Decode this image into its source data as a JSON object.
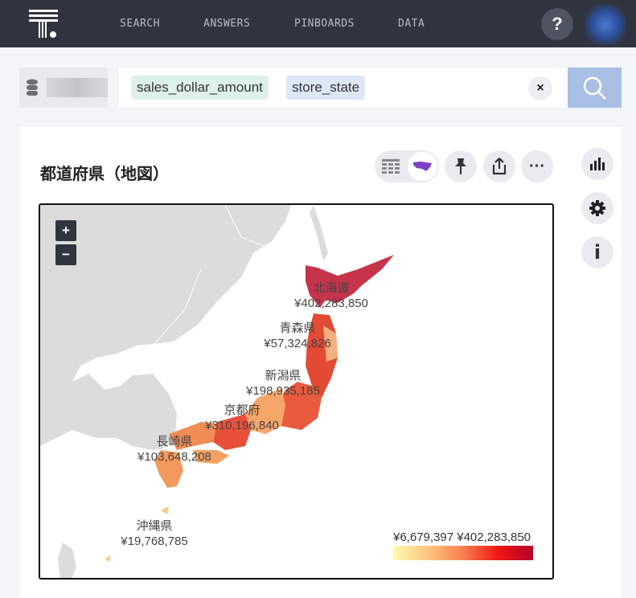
{
  "nav": {
    "items": [
      "SEARCH",
      "ANSWERS",
      "PINBOARDS",
      "DATA"
    ],
    "help": "?"
  },
  "search": {
    "tokens": [
      "sales_dollar_amount",
      "store_state"
    ],
    "clear": "×"
  },
  "chart": {
    "title": "都道府県（地図）",
    "map_labels": [
      {
        "name": "北海道",
        "value": "¥402,283,850"
      },
      {
        "name": "青森県",
        "value": "¥57,324,826"
      },
      {
        "name": "新潟県",
        "value": "¥198,935,185"
      },
      {
        "name": "京都府",
        "value": "¥310,196,840"
      },
      {
        "name": "長崎県",
        "value": "¥103,648,208"
      },
      {
        "name": "沖縄県",
        "value": "¥19,768,785"
      }
    ],
    "legend": {
      "min": "¥6,679,397",
      "max": "¥402,283,850",
      "colors": [
        "#fffbb0",
        "#fdc580",
        "#f6804f",
        "#f21712",
        "#b4002a"
      ]
    },
    "zoom_in": "+",
    "zoom_out": "−"
  },
  "side": {
    "info": "i"
  },
  "colors": {
    "topbar": "#30343f",
    "accent": "#a9bfe6"
  }
}
